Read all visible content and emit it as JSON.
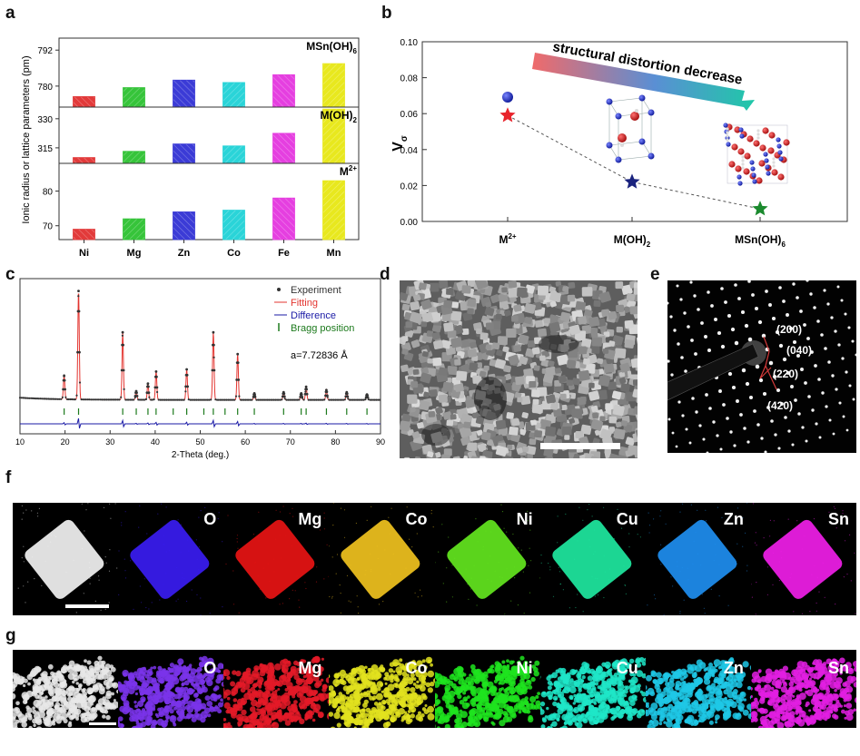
{
  "panels": {
    "a": "a",
    "b": "b",
    "c": "c",
    "d": "d",
    "e": "e",
    "f": "f",
    "g": "g"
  },
  "panel_a": {
    "ylabel": "Ionic radius or lattice parameters (pm)",
    "categories": [
      "Ni",
      "Mg",
      "Zn",
      "Co",
      "Fe",
      "Mn"
    ],
    "colors": [
      "#e23a3a",
      "#36c43a",
      "#3b3bd6",
      "#2ad4d8",
      "#e53fe0",
      "#e8e81e"
    ],
    "subplots": [
      {
        "label": "MSn(OH)",
        "label_sub": "6",
        "ticks": [
          "792",
          "780"
        ],
        "tick_values": [
          792,
          780
        ],
        "ylim": [
          773,
          796
        ],
        "values": [
          776.5,
          779.5,
          782.0,
          781.2,
          783.8,
          787.5
        ]
      },
      {
        "label": "M(OH)",
        "label_sub": "2",
        "ticks": [
          "330",
          "315"
        ],
        "tick_values": [
          330,
          315
        ],
        "ylim": [
          307,
          336
        ],
        "values": [
          310.0,
          313.2,
          317.0,
          316.0,
          322.5,
          335.0
        ]
      },
      {
        "label": "M",
        "label_sup": "2+",
        "ticks": [
          "80",
          "70"
        ],
        "tick_values": [
          80,
          70
        ],
        "ylim": [
          66,
          88
        ],
        "values": [
          69.0,
          72.0,
          74.0,
          74.5,
          78.0,
          83.0
        ]
      }
    ]
  },
  "panel_b": {
    "chart_data": {
      "type": "scatter",
      "ylabel": "V",
      "ylabel_sub": "σ",
      "categories": [
        "M",
        "M(OH)",
        "MSn(OH)"
      ],
      "category_subs": [
        "2+",
        "2",
        "6"
      ],
      "category_sub_types": [
        "sup",
        "sub",
        "sub"
      ],
      "values": [
        0.059,
        0.022,
        0.007
      ],
      "point_colors": [
        "#e8242c",
        "#1a237e",
        "#1b8a2e"
      ],
      "ylim": [
        0,
        0.1
      ],
      "yticks": [
        "0.00",
        "0.02",
        "0.04",
        "0.06",
        "0.08",
        "0.10"
      ],
      "ytick_values": [
        0.0,
        0.02,
        0.04,
        0.06,
        0.08,
        0.1
      ]
    },
    "annotation": "structural distortion decrease"
  },
  "panel_c": {
    "chart_data": {
      "type": "line",
      "xlabel": "2-Theta (deg.)",
      "xlim": [
        10,
        90
      ],
      "xticks": [
        "10",
        "20",
        "30",
        "40",
        "50",
        "60",
        "70",
        "80",
        "90"
      ],
      "xtick_values": [
        10,
        20,
        30,
        40,
        50,
        60,
        70,
        80,
        90
      ],
      "peaks_x": [
        19.8,
        23.0,
        32.8,
        35.8,
        38.4,
        40.2,
        47.0,
        52.9,
        58.3,
        62.0,
        68.5,
        72.4,
        73.5,
        78.0,
        82.5,
        87.0
      ],
      "peaks_y": [
        0.22,
        1.0,
        0.62,
        0.08,
        0.15,
        0.26,
        0.28,
        0.62,
        0.42,
        0.06,
        0.07,
        0.06,
        0.12,
        0.09,
        0.07,
        0.05
      ],
      "bragg_positions": [
        19.8,
        23.0,
        32.8,
        35.8,
        38.4,
        40.2,
        44.0,
        47.0,
        50.8,
        52.9,
        55.5,
        58.3,
        62.0,
        68.5,
        72.4,
        73.5,
        78.0,
        82.5,
        87.0
      ],
      "legend": [
        "Experiment",
        "Fitting",
        "Difference",
        "Bragg position"
      ],
      "series_colors": [
        "#333333",
        "#e3342f",
        "#1a1aa6",
        "#1d7a1d"
      ],
      "annotation": "a=7.72836 Å"
    }
  },
  "panel_e": {
    "spots": [
      "(200)",
      "(040)",
      "(220)",
      "(420)"
    ]
  },
  "panel_f": {
    "labels": [
      "",
      "O",
      "Mg",
      "Co",
      "Ni",
      "Cu",
      "Zn",
      "Sn"
    ],
    "colors": [
      "#f2f2f2",
      "#3a1cf2",
      "#e81414",
      "#f0c21e",
      "#63e61e",
      "#1ee8a0",
      "#1e8ef0",
      "#f01ee8"
    ]
  },
  "panel_g": {
    "labels": [
      "",
      "O",
      "Mg",
      "Co",
      "Ni",
      "Cu",
      "Zn",
      "Sn"
    ],
    "colors": [
      "#e8e8e8",
      "#7a34ea",
      "#e41a28",
      "#e2e21e",
      "#1ee41e",
      "#1ee6c8",
      "#1ec8e6",
      "#e21ee2"
    ]
  }
}
